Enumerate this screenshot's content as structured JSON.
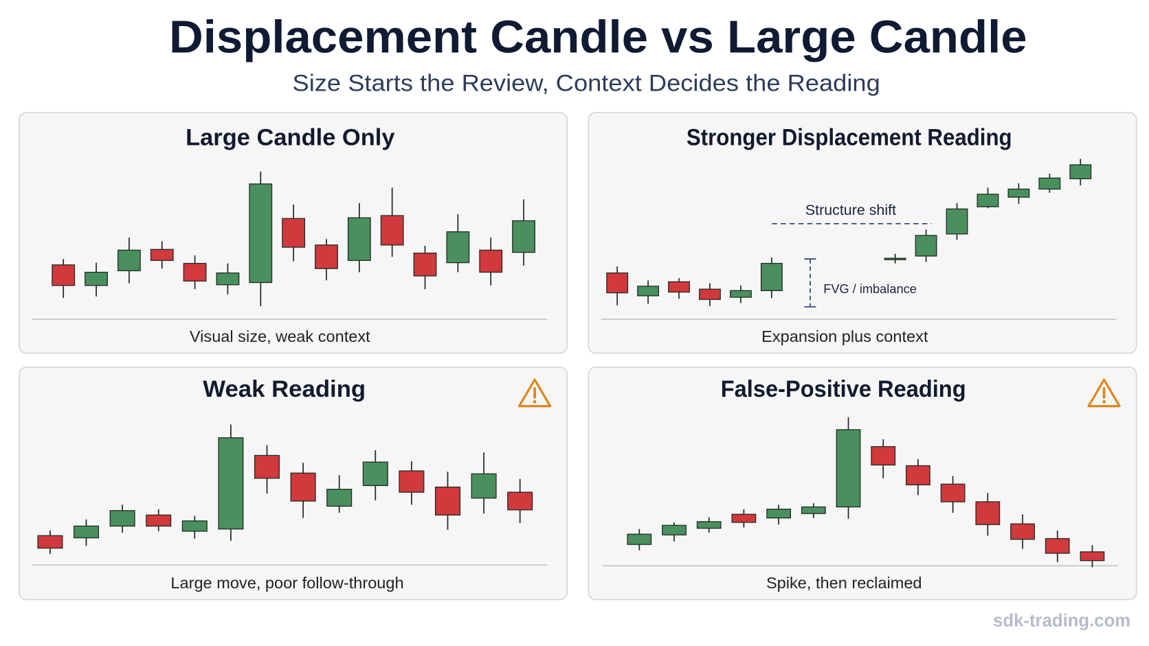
{
  "title": "Displacement Candle vs Large Candle",
  "subtitle": "Size Starts the Review, Context Decides the Reading",
  "footer": "sdk-trading.com",
  "chart_data": [
    {
      "type": "candlestick",
      "title": "Large Candle Only",
      "caption": "Visual size, weak context",
      "warning": false,
      "up_color": "#4a8f5e",
      "down_color": "#d1393c",
      "ylim": [
        0,
        220
      ],
      "open": [
        70,
        42,
        62,
        91,
        72,
        43,
        46,
        133,
        97,
        76,
        137,
        86,
        73,
        90,
        87
      ],
      "high": [
        78,
        73,
        107,
        102,
        83,
        72,
        197,
        152,
        105,
        154,
        175,
        96,
        139,
        107,
        159
      ],
      "low": [
        25,
        27,
        45,
        65,
        37,
        30,
        14,
        75,
        49,
        60,
        81,
        37,
        60,
        42,
        69
      ],
      "close": [
        42,
        60,
        90,
        76,
        48,
        59,
        180,
        94,
        65,
        134,
        97,
        55,
        115,
        60,
        130
      ]
    },
    {
      "type": "candlestick",
      "title": "Stronger Displacement Reading",
      "caption": "Expansion plus context",
      "warning": false,
      "up_color": "#4a8f5e",
      "down_color": "#d1393c",
      "ylim": [
        0,
        220
      ],
      "annotations": [
        {
          "text": "Structure shift"
        },
        {
          "text": "FVG / imbalance"
        }
      ],
      "open": [
        59,
        28,
        47,
        37,
        26,
        35,
        null,
        null,
        null,
        78,
        82,
        112,
        149,
        162,
        173,
        187
      ],
      "high": [
        68,
        49,
        52,
        45,
        42,
        80,
        null,
        null,
        null,
        85,
        118,
        154,
        175,
        181,
        194,
        214
      ],
      "low": [
        15,
        17,
        24,
        14,
        18,
        25,
        null,
        null,
        null,
        72,
        74,
        104,
        147,
        153,
        168,
        178
      ],
      "close": [
        32,
        41,
        33,
        23,
        35,
        72,
        null,
        null,
        null,
        78,
        110,
        146,
        166,
        173,
        188,
        206
      ]
    },
    {
      "type": "candlestick",
      "title": "Weak Reading",
      "caption": "Large move, poor follow-through",
      "warning": true,
      "up_color": "#4a8f5e",
      "down_color": "#d1393c",
      "ylim": [
        0,
        220
      ],
      "open": [
        42,
        39,
        55,
        70,
        48,
        51,
        151,
        127,
        82,
        110,
        130,
        108,
        93,
        101
      ],
      "high": [
        49,
        64,
        84,
        78,
        69,
        193,
        165,
        141,
        124,
        158,
        143,
        129,
        155,
        119
      ],
      "low": [
        17,
        28,
        46,
        48,
        38,
        35,
        99,
        66,
        73,
        90,
        84,
        50,
        72,
        59
      ],
      "close": [
        25,
        55,
        76,
        55,
        62,
        175,
        120,
        89,
        105,
        142,
        101,
        70,
        126,
        77
      ]
    },
    {
      "type": "candlestick",
      "title": "False-Positive Reading",
      "caption": "Spike, then reclaimed",
      "warning": true,
      "up_color": "#4a8f5e",
      "down_color": "#d1393c",
      "ylim": [
        0,
        220
      ],
      "open": [
        30,
        43,
        52,
        71,
        66,
        72,
        81,
        163,
        137,
        112,
        88,
        58,
        38,
        20
      ],
      "high": [
        51,
        60,
        67,
        78,
        84,
        86,
        203,
        173,
        146,
        123,
        100,
        71,
        49,
        29
      ],
      "low": [
        22,
        34,
        46,
        53,
        57,
        66,
        65,
        120,
        97,
        73,
        42,
        24,
        6,
        -1
      ],
      "close": [
        44,
        56,
        61,
        60,
        78,
        81,
        186,
        138,
        111,
        88,
        57,
        37,
        18,
        8
      ]
    }
  ]
}
